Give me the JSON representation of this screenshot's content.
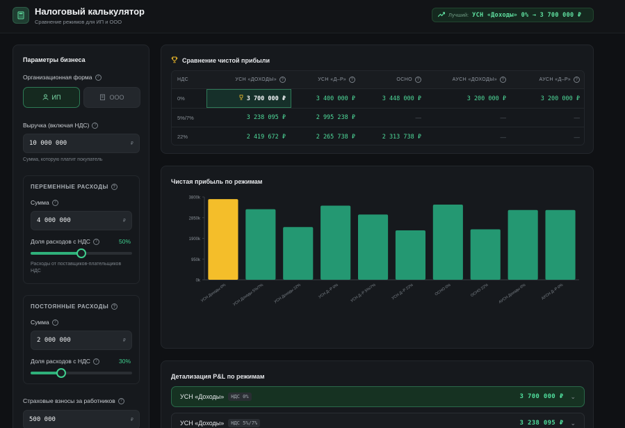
{
  "app": {
    "title": "Налоговый калькулятор",
    "subtitle": "Сравнение режимов для ИП и ООО",
    "best_label": "Лучший:",
    "best_value": "УСН «Доходы» 0% → 3 700 000 ₽"
  },
  "params": {
    "title": "Параметры бизнеса",
    "org_form_label": "Организационная форма",
    "org_options": [
      "ИП",
      "ООО"
    ],
    "org_selected": "ИП",
    "revenue_label": "Выручка (включая НДС)",
    "revenue_value": "10 000 000",
    "revenue_hint": "Сумма, которую платит покупатель",
    "currency": "₽",
    "variable": {
      "title": "ПЕРЕМЕННЫЕ РАСХОДЫ",
      "sum_label": "Сумма",
      "sum_value": "4 000 000",
      "vat_share_label": "Доля расходов с НДС",
      "vat_share_text": "50%",
      "vat_share": 0.5,
      "hint": "Расходы от поставщиков-плательщиков НДС"
    },
    "fixed": {
      "title": "ПОСТОЯННЫЕ РАСХОДЫ",
      "sum_label": "Сумма",
      "sum_value": "2 000 000",
      "vat_share_label": "Доля расходов с НДС",
      "vat_share_text": "30%",
      "vat_share": 0.3
    },
    "insurance_label": "Страховые взносы за работников",
    "insurance_value": "500 000"
  },
  "comparison": {
    "title": "Сравнение чистой прибыли",
    "columns": [
      "НДС",
      "УСН «ДОХОДЫ»",
      "УСН «Д–Р»",
      "ОСНО",
      "АУСН «ДОХОДЫ»",
      "АУСН «Д–Р»"
    ],
    "rows": [
      {
        "label": "0%",
        "cells": [
          "3 700 000 ₽",
          "3 400 000 ₽",
          "3 448 000 ₽",
          "3 200 000 ₽",
          "3 200 000 ₽"
        ]
      },
      {
        "label": "5%/7%",
        "cells": [
          "3 238 095 ₽",
          "2 995 238 ₽",
          "—",
          "—",
          "—"
        ]
      },
      {
        "label": "22%",
        "cells": [
          "2 419 672 ₽",
          "2 265 738 ₽",
          "2 313 738 ₽",
          "—",
          "—"
        ]
      }
    ]
  },
  "chart_data": {
    "type": "bar",
    "title": "Чистая прибыль по режимам",
    "categories": [
      "УСН Доходы 0%",
      "УСН Доходы 5%/7%",
      "УСН Доходы 22%",
      "УСН Д–Р 0%",
      "УСН Д–Р 5%/7%",
      "УСН Д–Р 22%",
      "ОСНО 0%",
      "ОСНО 22%",
      "АУСН Доходы 0%",
      "АУСН Д–Р 0%"
    ],
    "values": [
      3700000,
      3238095,
      2419672,
      3400000,
      2995238,
      2265738,
      3448000,
      2313738,
      3200000,
      3200000
    ],
    "highlight_index": 0,
    "y_ticks": [
      "0k",
      "950k",
      "1900k",
      "2850k",
      "3800k"
    ],
    "ylim": [
      0,
      3800000
    ],
    "colors": {
      "highlight": "#f4be2a",
      "bar": "#249872"
    }
  },
  "pl": {
    "title": "Детализация P&L по режимам",
    "rows": [
      {
        "name": "УСН «Доходы»",
        "tag": "НДС 0%",
        "value": "3 700 000 ₽"
      },
      {
        "name": "УСН «Доходы»",
        "tag": "НДС 5%/7%",
        "value": "3 238 095 ₽"
      }
    ]
  }
}
